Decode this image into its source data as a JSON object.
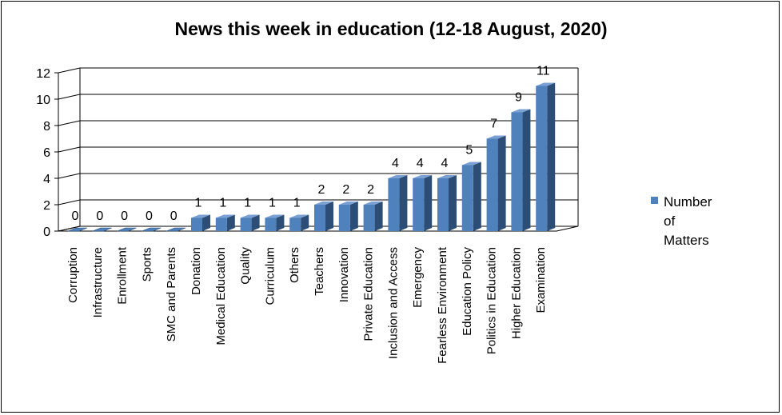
{
  "chart_data": {
    "type": "bar",
    "title": "News this week in education (12-18 August, 2020)",
    "xlabel": "",
    "ylabel": "",
    "ylim": [
      0,
      12
    ],
    "y_ticks": [
      "0",
      "2",
      "4",
      "6",
      "8",
      "10",
      "12"
    ],
    "grid": true,
    "legend_position": "right",
    "categories": [
      "Corruption",
      "Infrastructure",
      "Enrollment",
      "Sports",
      "SMC and Parents",
      "Donation",
      "Medical Education",
      "Quality",
      "Curriculum",
      "Others",
      "Teachers",
      "Innovation",
      "Private Education",
      "Inclusion and Access",
      "Emergency",
      "Fearless Environment",
      "Education Policy",
      "Politics in Education",
      "Higher Education",
      "Examination"
    ],
    "series": [
      {
        "name": "Number of Matters",
        "values": [
          0,
          0,
          0,
          0,
          0,
          1,
          1,
          1,
          1,
          1,
          2,
          2,
          2,
          4,
          4,
          4,
          5,
          7,
          9,
          11
        ],
        "color": "#4f81bd"
      }
    ],
    "legend_lines": [
      "Number",
      "of",
      "Matters"
    ]
  }
}
